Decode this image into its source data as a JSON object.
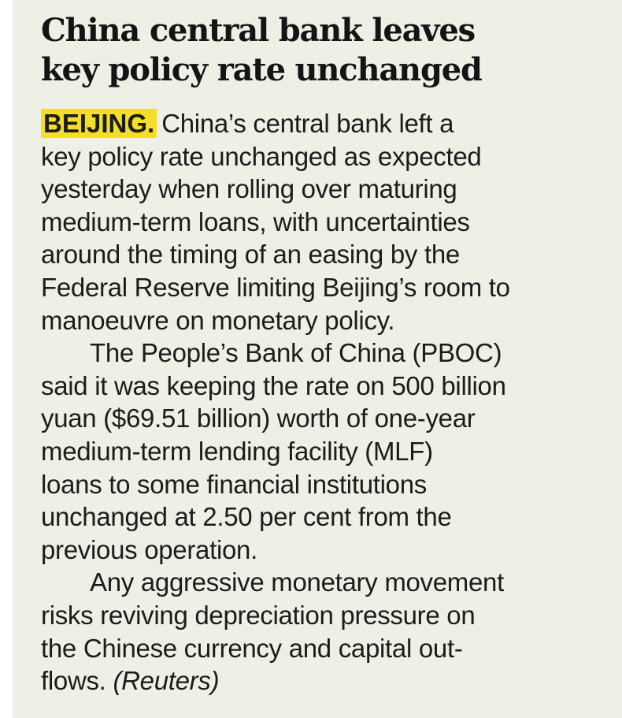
{
  "article": {
    "headline_lines": [
      "China central bank leaves",
      "key policy rate unchanged"
    ],
    "dateline": "BEIJING.",
    "byline": "(Reuters)",
    "paragraph_1_lines": [
      "China’s central bank left a",
      "key policy rate unchanged as expected",
      "yesterday when rolling over maturing",
      "medium-term loans, with uncertainties",
      "around the timing of an easing by the",
      "Federal Reserve limiting Beijing’s room to",
      "manoeuvre on monetary policy."
    ],
    "paragraph_2_lines": [
      "The People’s Bank of China (PBOC)",
      "said it was keeping the rate on 500 billion",
      "yuan ($69.51 billion) worth of one-year",
      "medium-term lending facility (MLF)",
      "loans to some financial institutions",
      "unchanged at 2.50 per cent from the",
      "previous operation."
    ],
    "paragraph_3_lines": [
      "Any aggressive monetary movement",
      "risks reviving depreciation pressure on",
      "the Chinese currency and capital out-",
      "flows."
    ]
  },
  "colors": {
    "page_background": "#eef0e6",
    "dateline_highlight": "#f4de27",
    "text": "#1c1c1c"
  }
}
